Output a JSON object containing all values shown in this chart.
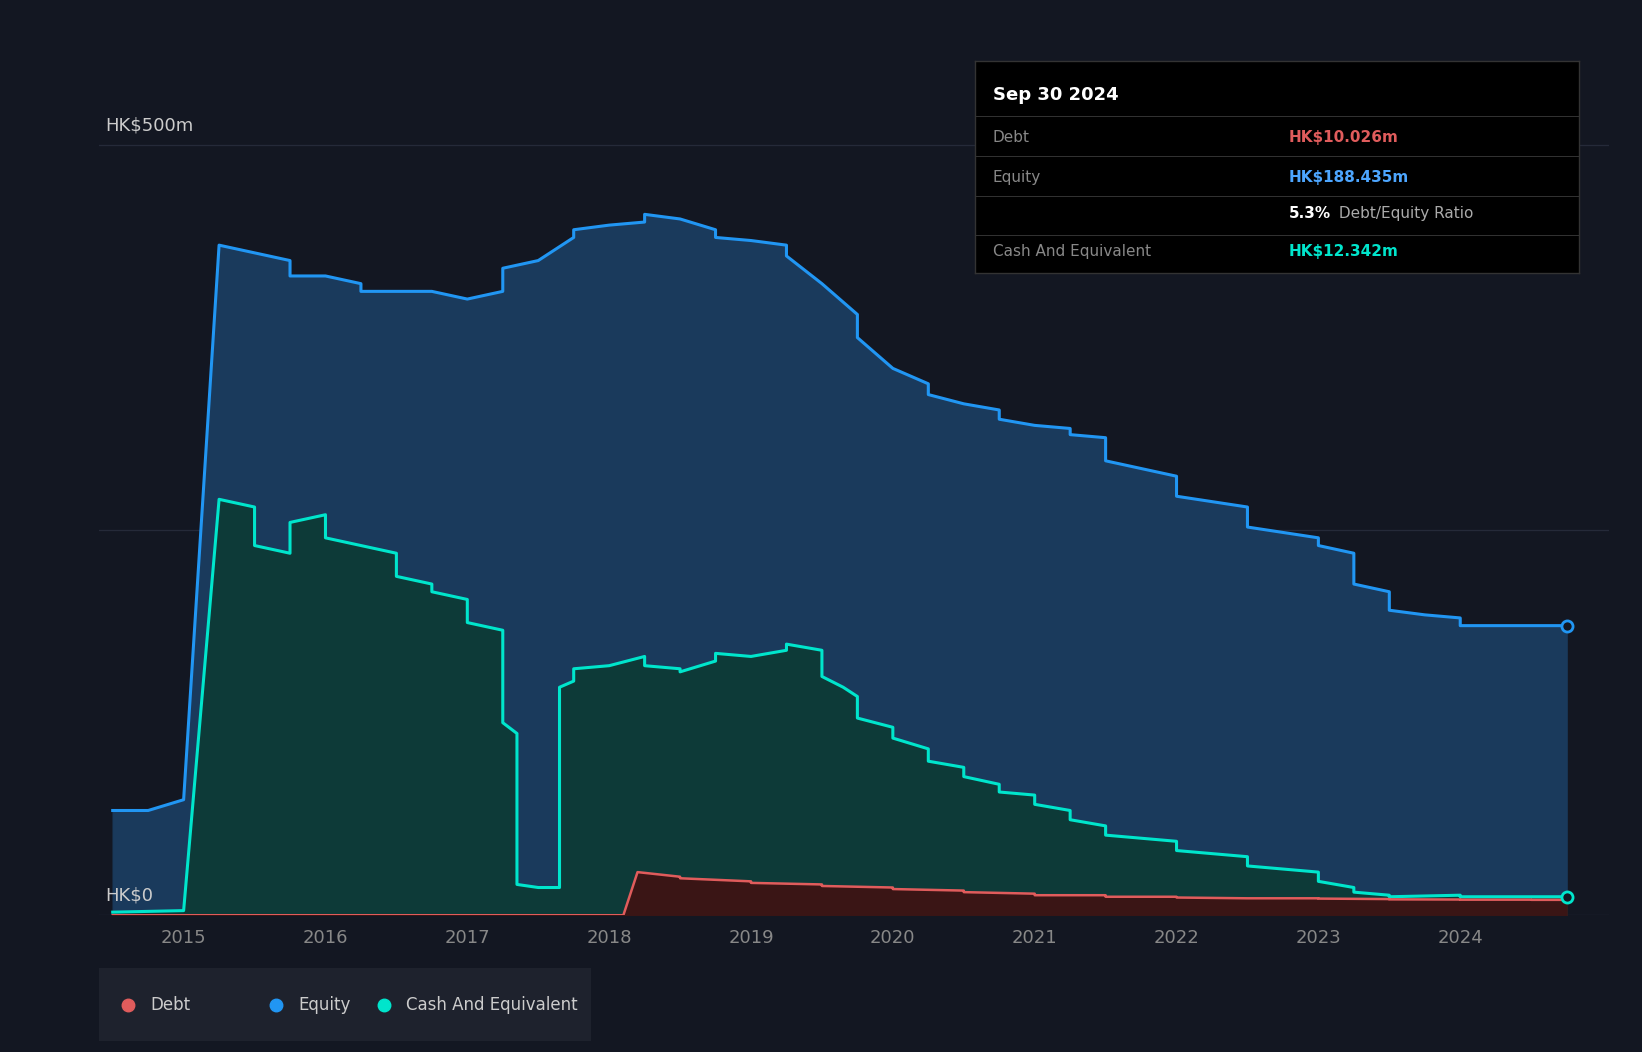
{
  "background_color": "#131722",
  "plot_bg_color": "#131722",
  "grid_color": "#2a3040",
  "tooltip": {
    "date": "Sep 30 2024",
    "debt_label": "Debt",
    "debt_value": "HK$10.026m",
    "debt_color": "#e05c5c",
    "equity_label": "Equity",
    "equity_value": "HK$188.435m",
    "equity_color": "#4da6ff",
    "ratio_text_bold": "5.3%",
    "ratio_text_normal": " Debt/Equity Ratio",
    "ratio_bold_color": "#ffffff",
    "ratio_normal_color": "#aaaaaa",
    "cash_label": "Cash And Equivalent",
    "cash_value": "HK$12.342m",
    "cash_color": "#00e5cc",
    "bg_color": "#000000",
    "title_color": "#ffffff",
    "label_color": "#888888",
    "border_color": "#333333"
  },
  "equity_color": "#2196f3",
  "equity_fill_color": "#1a3a5c",
  "cash_color": "#00e5cc",
  "cash_fill_color": "#0d3a38",
  "debt_color": "#e05c5c",
  "debt_fill_color": "#3a1515",
  "legend_bg": "#1e222d",
  "x_tick_color": "#888888",
  "y_label_color": "#cccccc",
  "ylim": [
    0,
    560
  ],
  "equity_data": [
    [
      2014.5,
      68
    ],
    [
      2014.75,
      68
    ],
    [
      2014.75,
      68
    ],
    [
      2015.0,
      75
    ],
    [
      2015.0,
      75
    ],
    [
      2015.25,
      435
    ],
    [
      2015.25,
      435
    ],
    [
      2015.5,
      430
    ],
    [
      2015.5,
      430
    ],
    [
      2015.75,
      425
    ],
    [
      2015.75,
      415
    ],
    [
      2016.0,
      415
    ],
    [
      2016.0,
      415
    ],
    [
      2016.25,
      410
    ],
    [
      2016.25,
      405
    ],
    [
      2016.5,
      405
    ],
    [
      2016.5,
      405
    ],
    [
      2016.75,
      405
    ],
    [
      2016.75,
      405
    ],
    [
      2017.0,
      400
    ],
    [
      2017.0,
      400
    ],
    [
      2017.25,
      405
    ],
    [
      2017.25,
      420
    ],
    [
      2017.5,
      425
    ],
    [
      2017.5,
      425
    ],
    [
      2017.75,
      440
    ],
    [
      2017.75,
      445
    ],
    [
      2018.0,
      448
    ],
    [
      2018.0,
      448
    ],
    [
      2018.25,
      450
    ],
    [
      2018.25,
      455
    ],
    [
      2018.5,
      452
    ],
    [
      2018.5,
      452
    ],
    [
      2018.75,
      445
    ],
    [
      2018.75,
      440
    ],
    [
      2019.0,
      438
    ],
    [
      2019.0,
      438
    ],
    [
      2019.25,
      435
    ],
    [
      2019.25,
      428
    ],
    [
      2019.5,
      410
    ],
    [
      2019.5,
      410
    ],
    [
      2019.75,
      390
    ],
    [
      2019.75,
      375
    ],
    [
      2020.0,
      355
    ],
    [
      2020.0,
      355
    ],
    [
      2020.25,
      345
    ],
    [
      2020.25,
      338
    ],
    [
      2020.5,
      332
    ],
    [
      2020.5,
      332
    ],
    [
      2020.75,
      328
    ],
    [
      2020.75,
      322
    ],
    [
      2021.0,
      318
    ],
    [
      2021.0,
      318
    ],
    [
      2021.25,
      316
    ],
    [
      2021.25,
      312
    ],
    [
      2021.5,
      310
    ],
    [
      2021.5,
      295
    ],
    [
      2022.0,
      285
    ],
    [
      2022.0,
      272
    ],
    [
      2022.5,
      265
    ],
    [
      2022.5,
      252
    ],
    [
      2023.0,
      245
    ],
    [
      2023.0,
      240
    ],
    [
      2023.25,
      235
    ],
    [
      2023.25,
      215
    ],
    [
      2023.5,
      210
    ],
    [
      2023.5,
      198
    ],
    [
      2023.75,
      195
    ],
    [
      2023.75,
      195
    ],
    [
      2024.0,
      193
    ],
    [
      2024.0,
      188
    ],
    [
      2024.5,
      188
    ],
    [
      2024.5,
      188
    ],
    [
      2024.75,
      188
    ]
  ],
  "cash_data": [
    [
      2014.5,
      2
    ],
    [
      2015.0,
      3
    ],
    [
      2015.0,
      3
    ],
    [
      2015.25,
      270
    ],
    [
      2015.25,
      270
    ],
    [
      2015.5,
      265
    ],
    [
      2015.5,
      240
    ],
    [
      2015.75,
      235
    ],
    [
      2015.75,
      255
    ],
    [
      2016.0,
      260
    ],
    [
      2016.0,
      245
    ],
    [
      2016.25,
      240
    ],
    [
      2016.25,
      240
    ],
    [
      2016.5,
      235
    ],
    [
      2016.5,
      220
    ],
    [
      2016.75,
      215
    ],
    [
      2016.75,
      210
    ],
    [
      2017.0,
      205
    ],
    [
      2017.0,
      190
    ],
    [
      2017.25,
      185
    ],
    [
      2017.25,
      125
    ],
    [
      2017.35,
      118
    ],
    [
      2017.35,
      20
    ],
    [
      2017.5,
      18
    ],
    [
      2017.5,
      18
    ],
    [
      2017.65,
      18
    ],
    [
      2017.65,
      148
    ],
    [
      2017.75,
      152
    ],
    [
      2017.75,
      160
    ],
    [
      2018.0,
      162
    ],
    [
      2018.0,
      162
    ],
    [
      2018.25,
      168
    ],
    [
      2018.25,
      162
    ],
    [
      2018.5,
      160
    ],
    [
      2018.5,
      158
    ],
    [
      2018.75,
      165
    ],
    [
      2018.75,
      170
    ],
    [
      2019.0,
      168
    ],
    [
      2019.0,
      168
    ],
    [
      2019.25,
      172
    ],
    [
      2019.25,
      176
    ],
    [
      2019.5,
      172
    ],
    [
      2019.5,
      155
    ],
    [
      2019.65,
      148
    ],
    [
      2019.65,
      148
    ],
    [
      2019.75,
      142
    ],
    [
      2019.75,
      128
    ],
    [
      2020.0,
      122
    ],
    [
      2020.0,
      115
    ],
    [
      2020.25,
      108
    ],
    [
      2020.25,
      100
    ],
    [
      2020.5,
      96
    ],
    [
      2020.5,
      90
    ],
    [
      2020.75,
      85
    ],
    [
      2020.75,
      80
    ],
    [
      2021.0,
      78
    ],
    [
      2021.0,
      72
    ],
    [
      2021.25,
      68
    ],
    [
      2021.25,
      62
    ],
    [
      2021.5,
      58
    ],
    [
      2021.5,
      52
    ],
    [
      2022.0,
      48
    ],
    [
      2022.0,
      42
    ],
    [
      2022.5,
      38
    ],
    [
      2022.5,
      32
    ],
    [
      2023.0,
      28
    ],
    [
      2023.0,
      22
    ],
    [
      2023.25,
      18
    ],
    [
      2023.25,
      15
    ],
    [
      2023.5,
      13
    ],
    [
      2023.5,
      12
    ],
    [
      2024.0,
      13
    ],
    [
      2024.0,
      12
    ],
    [
      2024.5,
      12
    ],
    [
      2024.5,
      12
    ],
    [
      2024.75,
      12
    ]
  ],
  "debt_data": [
    [
      2014.5,
      0
    ],
    [
      2018.1,
      0
    ],
    [
      2018.1,
      0
    ],
    [
      2018.2,
      28
    ],
    [
      2018.2,
      28
    ],
    [
      2018.5,
      25
    ],
    [
      2018.5,
      24
    ],
    [
      2019.0,
      22
    ],
    [
      2019.0,
      21
    ],
    [
      2019.5,
      20
    ],
    [
      2019.5,
      19
    ],
    [
      2020.0,
      18
    ],
    [
      2020.0,
      17
    ],
    [
      2020.5,
      16
    ],
    [
      2020.5,
      15
    ],
    [
      2021.0,
      14
    ],
    [
      2021.0,
      13
    ],
    [
      2021.5,
      13
    ],
    [
      2021.5,
      12
    ],
    [
      2022.0,
      12
    ],
    [
      2022.0,
      11.5
    ],
    [
      2022.5,
      11
    ],
    [
      2022.5,
      11
    ],
    [
      2023.0,
      11
    ],
    [
      2023.0,
      10.8
    ],
    [
      2023.5,
      10.5
    ],
    [
      2023.5,
      10.3
    ],
    [
      2024.0,
      10.2
    ],
    [
      2024.0,
      10.1
    ],
    [
      2024.5,
      10.1
    ],
    [
      2024.5,
      10.0
    ],
    [
      2024.75,
      10.0
    ]
  ],
  "x_ticks": [
    2015,
    2016,
    2017,
    2018,
    2019,
    2020,
    2021,
    2022,
    2023,
    2024
  ],
  "x_labels": [
    "2015",
    "2016",
    "2017",
    "2018",
    "2019",
    "2020",
    "2021",
    "2022",
    "2023",
    "2024"
  ],
  "xlim_left": 2014.4,
  "xlim_right": 2025.05
}
